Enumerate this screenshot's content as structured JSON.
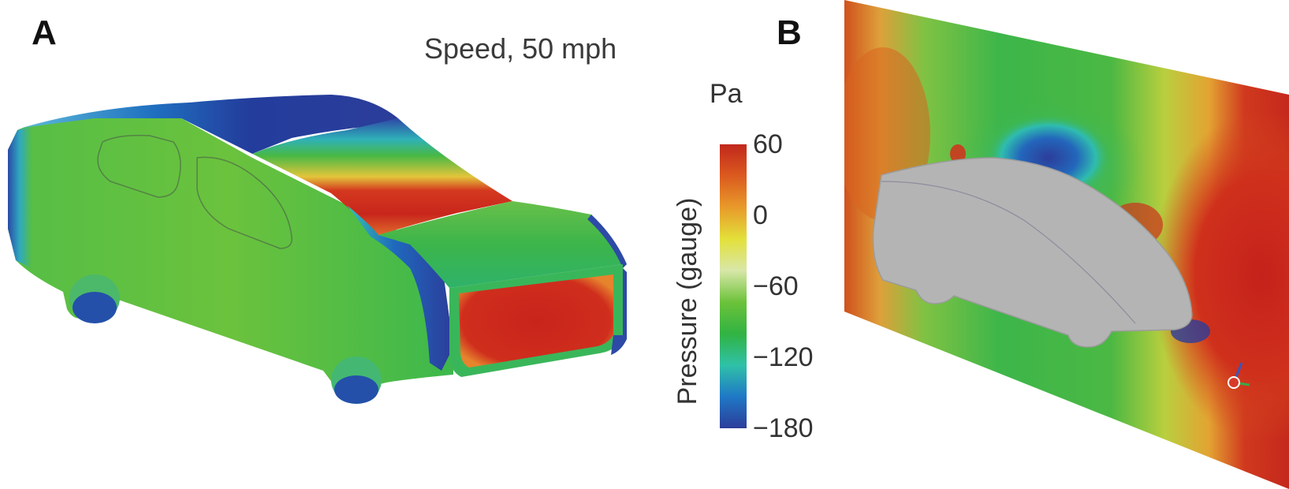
{
  "panels": {
    "a": {
      "label": "A"
    },
    "b": {
      "label": "B"
    }
  },
  "speed_label": "Speed, 50 mph",
  "colorbar": {
    "unit": "Pa",
    "title": "Pressure (gauge)",
    "ticks": [
      {
        "value": 60,
        "label": "60"
      },
      {
        "value": 0,
        "label": "0"
      },
      {
        "value": -60,
        "label": "−60"
      },
      {
        "value": -120,
        "label": "−120"
      },
      {
        "value": -180,
        "label": "−180"
      }
    ],
    "range": [
      -180,
      60
    ],
    "colormap": [
      "#2c3d9a",
      "#1f78c6",
      "#2fc1a8",
      "#31b342",
      "#6cc23a",
      "#d8e7a8",
      "#e3e03a",
      "#e89a2a",
      "#db5a1f",
      "#c1271c"
    ]
  },
  "colors": {
    "low": "#2c3d9a",
    "mid_low": "#2fc1a8",
    "mid": "#38b44a",
    "zero": "#e8edc0",
    "high": "#c1271c",
    "car_gray": "#b4b4b4"
  }
}
